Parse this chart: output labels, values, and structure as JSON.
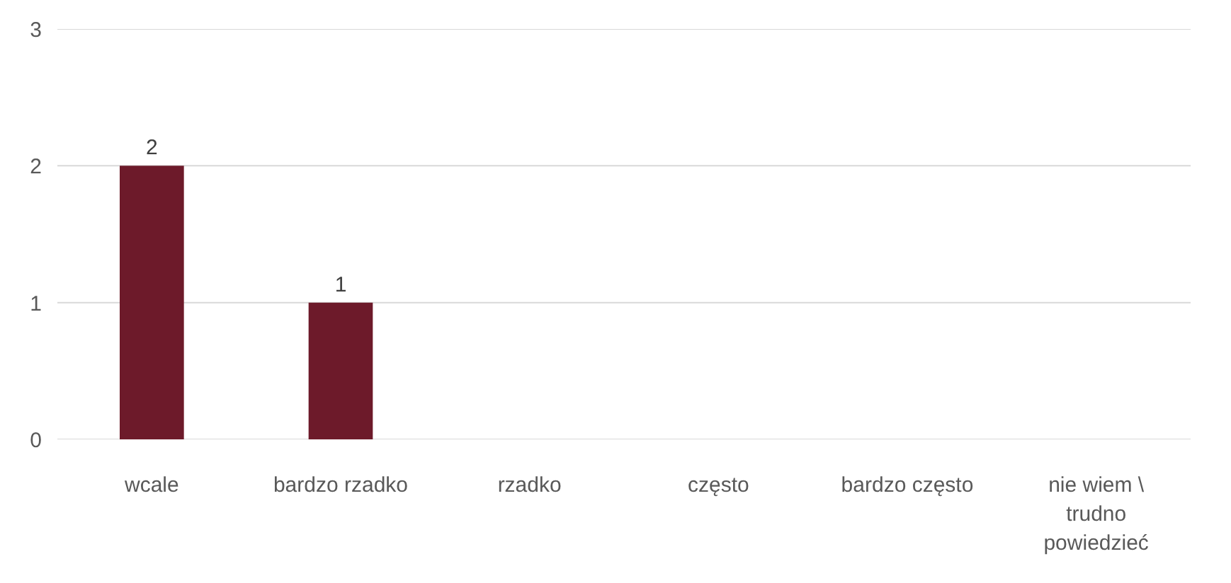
{
  "chart_data": {
    "type": "bar",
    "categories": [
      "wcale",
      "bardzo rzadko",
      "rzadko",
      "często",
      "bardzo często",
      "nie wiem \\ trudno powiedzieć"
    ],
    "values": [
      2,
      1,
      0,
      0,
      0,
      0
    ],
    "value_labels": [
      "2",
      "1",
      null,
      null,
      null,
      null
    ],
    "color": "#6d1a2a",
    "ylim": [
      0,
      3
    ],
    "yticks": [
      0,
      1,
      2,
      3
    ],
    "grid": "y"
  }
}
